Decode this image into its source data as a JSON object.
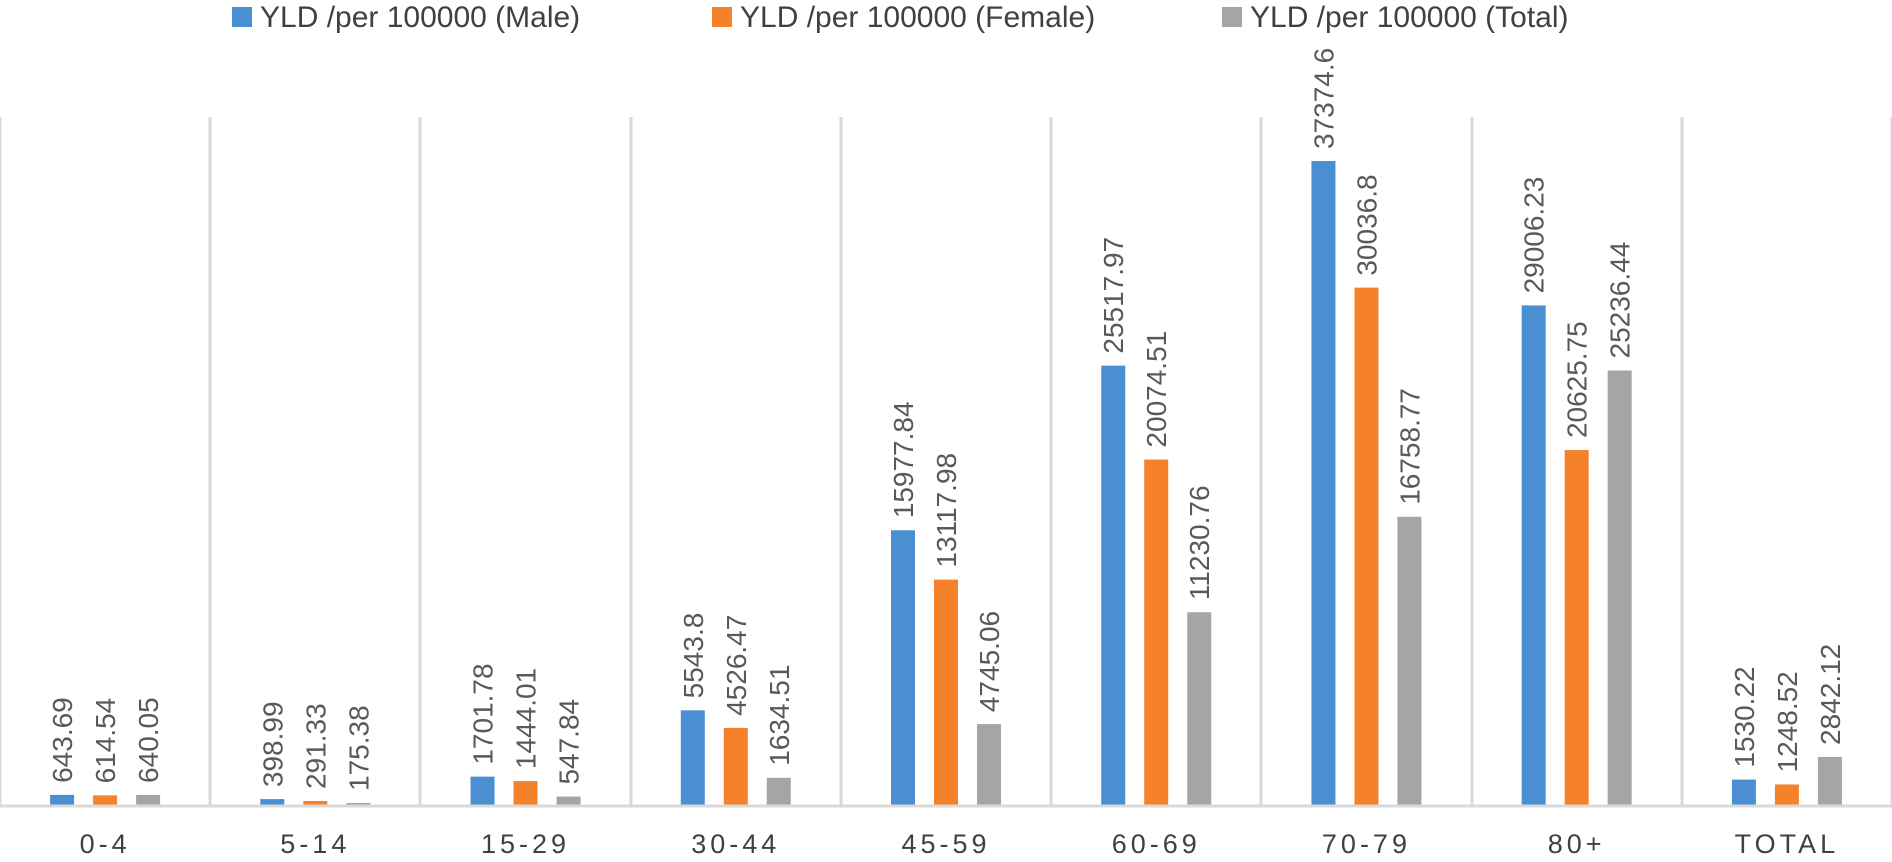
{
  "chart_data": {
    "type": "bar",
    "title": "",
    "xlabel": "",
    "ylabel": "",
    "ylim": [
      0,
      40000
    ],
    "grid": "vertical category separators",
    "legend_position": "top",
    "categories": [
      "0-4",
      "5-14",
      "15-29",
      "30-44",
      "45-59",
      "60-69",
      "70-79",
      "80+",
      "TOTAL"
    ],
    "series": [
      {
        "name": "YLD /per 100000 (Male)",
        "color": "#4A8FD2",
        "values": [
          643.69,
          398.99,
          1701.78,
          5543.8,
          15977.84,
          25517.97,
          37374.6,
          29006.23,
          1530.22
        ],
        "labels": [
          "643.69",
          "398.99",
          "1701.78",
          "5543.8",
          "15977.84",
          "25517.97",
          "37374.6",
          "29006.23",
          "1530.22"
        ]
      },
      {
        "name": "YLD /per 100000 (Female)",
        "color": "#F5822A",
        "values": [
          614.54,
          291.33,
          1444.01,
          4526.47,
          13117.98,
          20074.51,
          30036.8,
          20625.75,
          1248.52
        ],
        "labels": [
          "614.54",
          "291.33",
          "1444.01",
          "4526.47",
          "13117.98",
          "20074.51",
          "30036.8",
          "20625.75",
          "1248.52"
        ]
      },
      {
        "name": "YLD /per 100000 (Total)",
        "color": "#A5A5A5",
        "values": [
          640.05,
          175.38,
          547.84,
          1634.51,
          4745.06,
          11230.76,
          16758.77,
          25236.44,
          2842.12
        ],
        "labels": [
          "640.05",
          "175.38",
          "547.84",
          "1634.51",
          "4745.06",
          "11230.76",
          "16758.77",
          "25236.44",
          "2842.12"
        ]
      }
    ]
  }
}
